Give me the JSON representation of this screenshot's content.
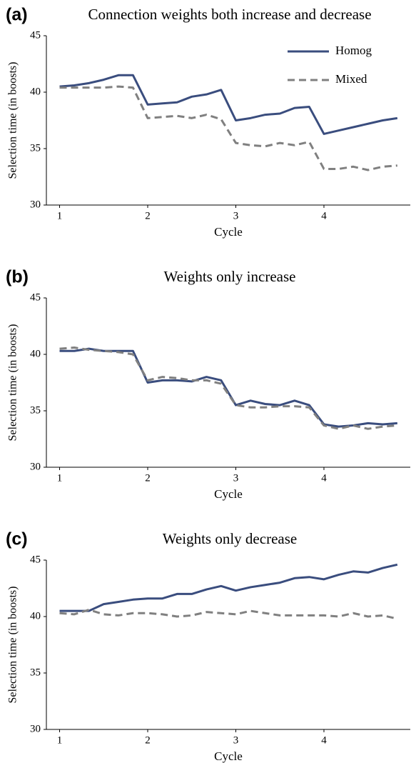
{
  "chart_data": [
    {
      "type": "line",
      "label": "(a)",
      "title": "Connection weights both increase and decrease",
      "xlabel": "Cycle",
      "ylabel": "Selection time (in boosts)",
      "x": [
        1,
        1.167,
        1.333,
        1.5,
        1.667,
        1.833,
        2,
        2.167,
        2.333,
        2.5,
        2.667,
        2.833,
        3,
        3.167,
        3.333,
        3.5,
        3.667,
        3.833,
        4,
        4.167,
        4.333,
        4.5,
        4.667,
        4.833
      ],
      "xlim": [
        0.85,
        4.98
      ],
      "xticks": [
        1,
        2,
        3,
        4
      ],
      "ylim": [
        30,
        45
      ],
      "yticks": [
        30,
        35,
        40,
        45
      ],
      "legend": "upper right",
      "series": [
        {
          "name": "Homog",
          "color": "#3a4d7e",
          "linestyle": "solid",
          "values": [
            40.5,
            40.6,
            40.8,
            41.1,
            41.5,
            41.5,
            38.9,
            39.0,
            39.1,
            39.6,
            39.8,
            40.2,
            37.5,
            37.7,
            38.0,
            38.1,
            38.6,
            38.7,
            36.3,
            36.6,
            36.9,
            37.2,
            37.5,
            37.7
          ]
        },
        {
          "name": "Mixed",
          "color": "#808080",
          "linestyle": "dashed",
          "values": [
            40.4,
            40.4,
            40.4,
            40.4,
            40.5,
            40.4,
            37.7,
            37.8,
            37.9,
            37.7,
            38.0,
            37.6,
            35.5,
            35.3,
            35.2,
            35.5,
            35.3,
            35.6,
            33.2,
            33.2,
            33.4,
            33.1,
            33.4,
            33.5
          ]
        }
      ]
    },
    {
      "type": "line",
      "label": "(b)",
      "title": "Weights only increase",
      "xlabel": "Cycle",
      "ylabel": "Selection time (in boosts)",
      "x": [
        1,
        1.167,
        1.333,
        1.5,
        1.667,
        1.833,
        2,
        2.167,
        2.333,
        2.5,
        2.667,
        2.833,
        3,
        3.167,
        3.333,
        3.5,
        3.667,
        3.833,
        4,
        4.167,
        4.333,
        4.5,
        4.667,
        4.833
      ],
      "xlim": [
        0.85,
        4.98
      ],
      "xticks": [
        1,
        2,
        3,
        4
      ],
      "ylim": [
        30,
        45
      ],
      "yticks": [
        30,
        35,
        40,
        45
      ],
      "series": [
        {
          "color": "#3a4d7e",
          "linestyle": "solid",
          "values": [
            40.3,
            40.3,
            40.5,
            40.3,
            40.3,
            40.3,
            37.5,
            37.7,
            37.7,
            37.6,
            38.0,
            37.7,
            35.5,
            35.9,
            35.6,
            35.5,
            35.9,
            35.5,
            33.8,
            33.6,
            33.7,
            33.9,
            33.8,
            33.9
          ]
        },
        {
          "color": "#808080",
          "linestyle": "dashed",
          "values": [
            40.5,
            40.6,
            40.4,
            40.3,
            40.2,
            40.0,
            37.7,
            38.0,
            37.9,
            37.7,
            37.7,
            37.4,
            35.5,
            35.3,
            35.3,
            35.4,
            35.4,
            35.3,
            33.7,
            33.4,
            33.7,
            33.4,
            33.6,
            33.7
          ]
        }
      ]
    },
    {
      "type": "line",
      "label": "(c)",
      "title": "Weights only decrease",
      "xlabel": "Cycle",
      "ylabel": "Selection time (in boosts)",
      "x": [
        1,
        1.167,
        1.333,
        1.5,
        1.667,
        1.833,
        2,
        2.167,
        2.333,
        2.5,
        2.667,
        2.833,
        3,
        3.167,
        3.333,
        3.5,
        3.667,
        3.833,
        4,
        4.167,
        4.333,
        4.5,
        4.667,
        4.833
      ],
      "xlim": [
        0.85,
        4.98
      ],
      "xticks": [
        1,
        2,
        3,
        4
      ],
      "ylim": [
        30,
        45
      ],
      "yticks": [
        30,
        35,
        40,
        45
      ],
      "series": [
        {
          "color": "#3a4d7e",
          "linestyle": "solid",
          "values": [
            40.5,
            40.5,
            40.5,
            41.1,
            41.3,
            41.5,
            41.6,
            41.6,
            42.0,
            42.0,
            42.4,
            42.7,
            42.3,
            42.6,
            42.8,
            43.0,
            43.4,
            43.5,
            43.3,
            43.7,
            44.0,
            43.9,
            44.3,
            44.6
          ]
        },
        {
          "color": "#808080",
          "linestyle": "dashed",
          "values": [
            40.3,
            40.2,
            40.6,
            40.2,
            40.1,
            40.3,
            40.3,
            40.2,
            40.0,
            40.1,
            40.4,
            40.3,
            40.2,
            40.5,
            40.3,
            40.1,
            40.1,
            40.1,
            40.1,
            40.0,
            40.3,
            40.0,
            40.1,
            39.8
          ]
        }
      ]
    }
  ]
}
